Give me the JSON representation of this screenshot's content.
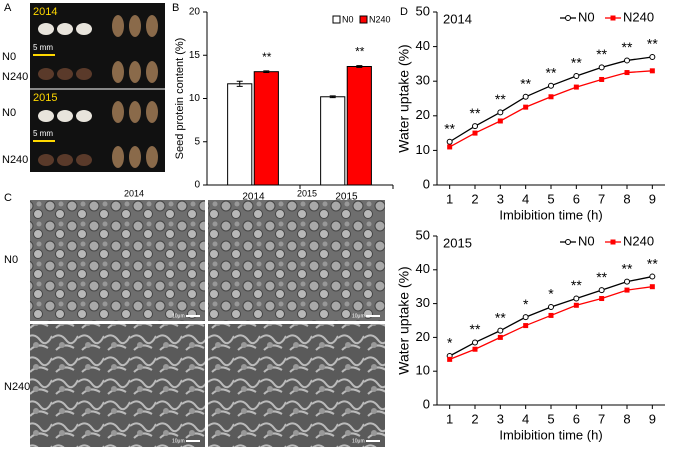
{
  "panel_labels": [
    "A",
    "B",
    "C",
    "D"
  ],
  "panel_a": {
    "years": [
      "2014",
      "2015"
    ],
    "rows": [
      "N0",
      "N240",
      "N0",
      "N240"
    ],
    "scale": [
      "5 mm",
      "5 mm"
    ]
  },
  "panel_c": {
    "years": [
      "2014",
      "2015"
    ],
    "rows": [
      "N0",
      "N240"
    ],
    "scale": [
      "10μm",
      "10μm",
      "10μm",
      "10μm"
    ]
  },
  "chart_data": [
    {
      "type": "bar",
      "y_label": "Seed protein content (%)",
      "categories": [
        "2014",
        "2015"
      ],
      "series": [
        {
          "name": "N0",
          "color": "#ffffff",
          "values": [
            11.7,
            10.2
          ],
          "errors": [
            0.3,
            0.1
          ]
        },
        {
          "name": "N240",
          "color": "#ff0000",
          "values": [
            13.1,
            13.7
          ],
          "errors": [
            0.1,
            0.1
          ]
        }
      ],
      "significance": [
        "**",
        "**"
      ],
      "ylim": [
        0,
        20
      ],
      "yticks": [
        0,
        5,
        10,
        15,
        20
      ]
    },
    {
      "type": "line",
      "title": "2014",
      "y_label": "Water uptake (%)",
      "x_label": "Imbibition time (h)",
      "x": [
        1,
        2,
        3,
        4,
        5,
        6,
        7,
        8,
        9
      ],
      "series": [
        {
          "name": "N0",
          "color": "#000000",
          "values": [
            12.5,
            17,
            21,
            25.5,
            28.7,
            31.5,
            34,
            36,
            37
          ]
        },
        {
          "name": "N240",
          "color": "#ff0000",
          "values": [
            11,
            15,
            18.5,
            22.5,
            25.5,
            28.3,
            30.5,
            32.5,
            33
          ]
        }
      ],
      "significance": [
        "**",
        "**",
        "**",
        "**",
        "**",
        "**",
        "**",
        "**",
        "**"
      ],
      "xlim": [
        0.5,
        9.5
      ],
      "xticks": [
        1,
        2,
        3,
        4,
        5,
        6,
        7,
        8,
        9
      ],
      "ylim": [
        0,
        50
      ],
      "yticks": [
        0,
        10,
        20,
        30,
        40,
        50
      ]
    },
    {
      "type": "line",
      "title": "2015",
      "y_label": "Water uptake (%)",
      "x_label": "Imbibition time (h)",
      "x": [
        1,
        2,
        3,
        4,
        5,
        6,
        7,
        8,
        9
      ],
      "series": [
        {
          "name": "N0",
          "color": "#000000",
          "values": [
            14.5,
            18.5,
            22,
            26,
            29,
            31.5,
            34,
            36.5,
            38
          ]
        },
        {
          "name": "N240",
          "color": "#ff0000",
          "values": [
            13.5,
            16.5,
            20,
            23.5,
            26.5,
            29.5,
            31.5,
            34,
            35
          ]
        }
      ],
      "significance": [
        "*",
        "**",
        "**",
        "*",
        "*",
        "**",
        "**",
        "**",
        "**"
      ],
      "xlim": [
        0.5,
        9.5
      ],
      "xticks": [
        1,
        2,
        3,
        4,
        5,
        6,
        7,
        8,
        9
      ],
      "ylim": [
        0,
        50
      ],
      "yticks": [
        0,
        10,
        20,
        30,
        40,
        50
      ]
    }
  ]
}
